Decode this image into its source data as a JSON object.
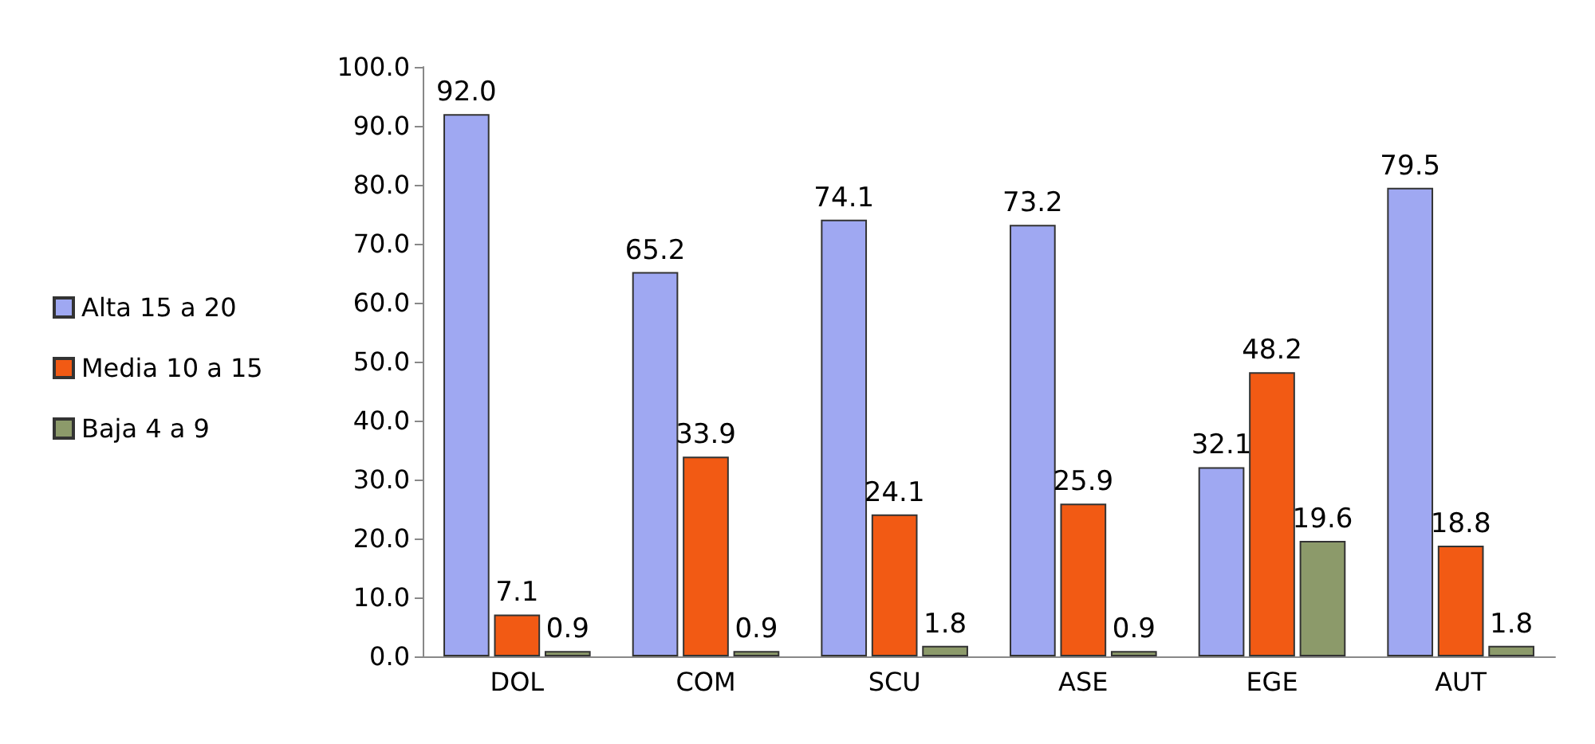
{
  "chart_data": {
    "type": "bar",
    "categories": [
      "DOL",
      "COM",
      "SCU",
      "ASE",
      "EGE",
      "AUT"
    ],
    "series": [
      {
        "name": "Alta 15 a 20",
        "color": "#9fa8f2",
        "values": [
          92.0,
          65.2,
          74.1,
          73.2,
          32.1,
          79.5
        ],
        "value_labels": [
          "92.0",
          "65.2",
          "74.1",
          "73.2",
          "32.1",
          "79.5"
        ]
      },
      {
        "name": "Media 10 a 15",
        "color": "#f25a14",
        "values": [
          7.1,
          33.9,
          24.1,
          25.9,
          48.2,
          18.8
        ],
        "value_labels": [
          "7.1",
          "33.9",
          "24.1",
          "25.9",
          "48.2",
          "18.8"
        ]
      },
      {
        "name": "Baja 4 a 9",
        "color": "#8c9a6a",
        "values": [
          0.9,
          0.9,
          1.8,
          0.9,
          19.6,
          1.8
        ],
        "value_labels": [
          "0.9",
          "0.9",
          "1.8",
          "0.9",
          "19.6",
          "1.8"
        ]
      }
    ],
    "ylim": [
      0,
      100
    ],
    "yticks": [
      {
        "value": 0,
        "label": "0.0"
      },
      {
        "value": 10,
        "label": "10.0"
      },
      {
        "value": 20,
        "label": "20.0"
      },
      {
        "value": 30,
        "label": "30.0"
      },
      {
        "value": 40,
        "label": "40.0"
      },
      {
        "value": 50,
        "label": "50.0"
      },
      {
        "value": 60,
        "label": "60.0"
      },
      {
        "value": 70,
        "label": "70.0"
      },
      {
        "value": 80,
        "label": "80.0"
      },
      {
        "value": 90,
        "label": "90.0"
      },
      {
        "value": 100,
        "label": "100.0"
      }
    ],
    "grid": false,
    "legend": "left"
  }
}
